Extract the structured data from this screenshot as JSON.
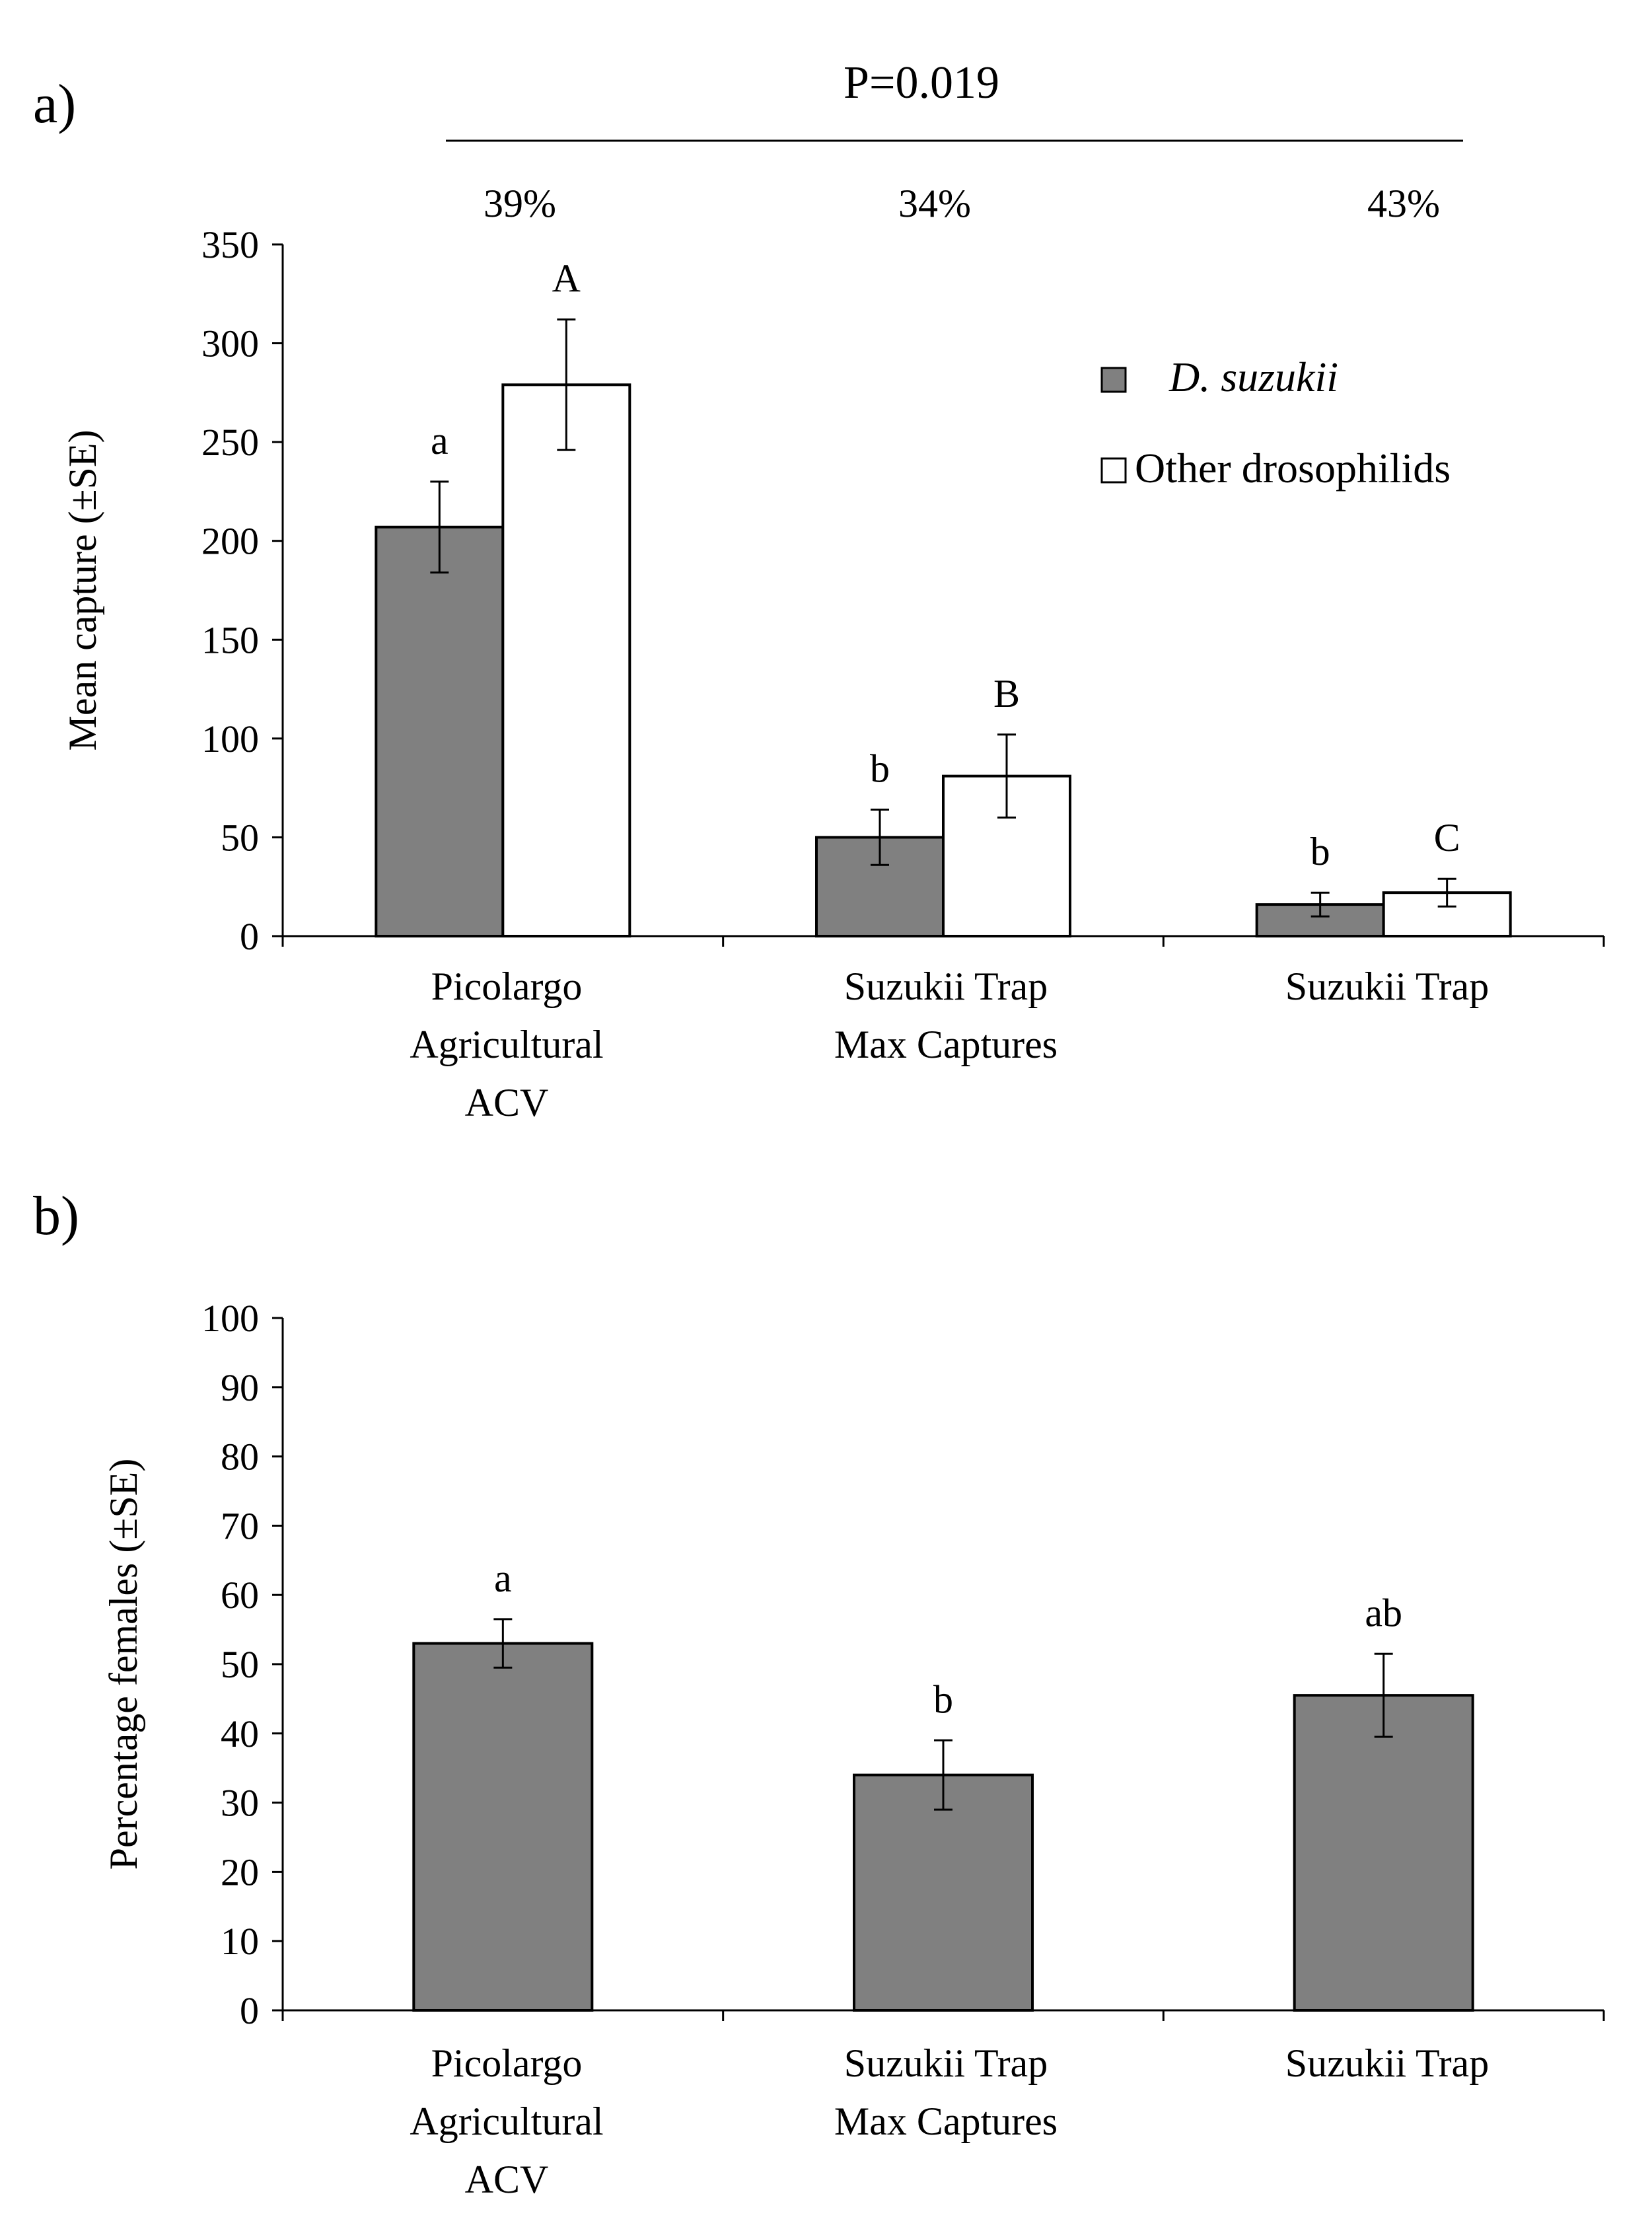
{
  "colors": {
    "dsuzukii": "#808080",
    "other": "#ffffff"
  },
  "chart_data": [
    {
      "id": "a",
      "panel_label": "a)",
      "type": "bar",
      "title": "",
      "xlabel": "",
      "ylabel": "Mean capture (±SE)",
      "ylim": [
        0,
        350
      ],
      "yticks": [
        0,
        50,
        100,
        150,
        200,
        250,
        300,
        350
      ],
      "categories": [
        [
          "Picolargo",
          "Agricultural",
          "ACV"
        ],
        [
          "Suzukii Trap",
          "Max Captures"
        ],
        [
          "Suzukii Trap"
        ]
      ],
      "series": [
        {
          "name": "D. suzukii",
          "color": "#808080",
          "values": [
            207,
            50,
            16
          ],
          "errors": [
            23,
            14,
            6
          ],
          "letters": [
            "a",
            "b",
            "b"
          ]
        },
        {
          "name": "Other drosophilids",
          "color": "#ffffff",
          "values": [
            279,
            81,
            22
          ],
          "errors": [
            33,
            21,
            7
          ],
          "letters": [
            "A",
            "B",
            "C"
          ]
        }
      ],
      "legend": {
        "position": "top-right",
        "entries": [
          "D. suzukii",
          "Other drosophilids"
        ]
      },
      "percentages": [
        "39%",
        "34%",
        "43%"
      ],
      "p_value": "P=0.019"
    },
    {
      "id": "b",
      "panel_label": "b)",
      "type": "bar",
      "title": "",
      "xlabel": "",
      "ylabel": "Percentage females (±SE)",
      "ylim": [
        0,
        100
      ],
      "yticks": [
        0,
        10,
        20,
        30,
        40,
        50,
        60,
        70,
        80,
        90,
        100
      ],
      "categories": [
        [
          "Picolargo",
          "Agricultural",
          "ACV"
        ],
        [
          "Suzukii Trap",
          "Max Captures"
        ],
        [
          "Suzukii Trap"
        ]
      ],
      "series": [
        {
          "name": "Percentage females",
          "color": "#808080",
          "values": [
            53,
            34,
            45.5
          ],
          "errors": [
            3.5,
            5,
            6
          ],
          "letters": [
            "a",
            "b",
            "ab"
          ]
        }
      ]
    }
  ]
}
